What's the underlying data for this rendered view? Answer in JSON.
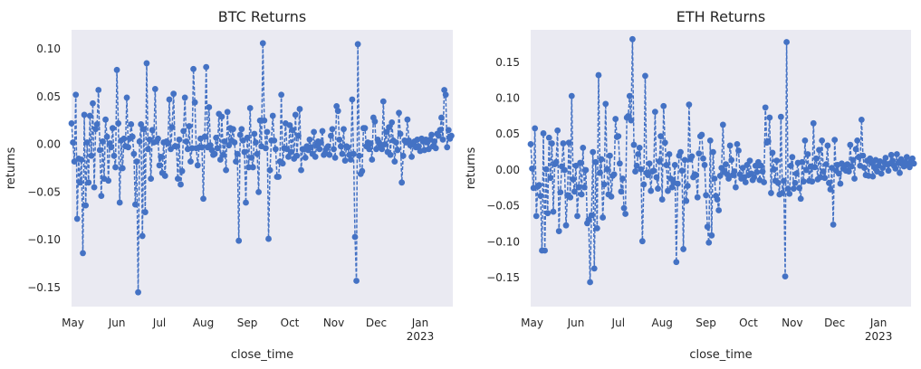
{
  "colors": {
    "background": "#EAEAF2",
    "series": "#4472C4",
    "text": "#262626"
  },
  "chart_data": [
    {
      "type": "line",
      "title": "BTC Returns",
      "xlabel": "close_time",
      "ylabel": "returns",
      "x_ticks": [
        "May",
        "Jun",
        "Jul",
        "Aug",
        "Sep",
        "Oct",
        "Nov",
        "Dec",
        "Jan"
      ],
      "x_year_label": "2023",
      "y_ticks": [
        "0.10",
        "0.05",
        "0.00",
        "−0.05",
        "−0.10",
        "−0.15"
      ],
      "xlim": [
        "2022-04-30",
        "2023-01-24"
      ],
      "ylim": [
        -0.17,
        0.12
      ],
      "grid": false,
      "style": "dashed line with circle markers",
      "series": [
        {
          "start": "2022-04-30",
          "freq": "daily",
          "values": [
            0.022,
            0.002,
            -0.018,
            0.052,
            -0.078,
            -0.015,
            -0.04,
            -0.016,
            -0.114,
            0.031,
            -0.064,
            0.002,
            -0.04,
            0.03,
            -0.012,
            0.043,
            -0.045,
            0.016,
            0.021,
            0.057,
            -0.006,
            -0.054,
            0.003,
            -0.036,
            0.026,
            0.008,
            -0.038,
            0.001,
            -0.003,
            0.017,
            -0.012,
            -0.024,
            0.078,
            0.022,
            -0.061,
            0.004,
            -0.025,
            0.006,
            -0.002,
            0.049,
            -0.003,
            0.006,
            0.021,
            0.008,
            -0.01,
            -0.063,
            -0.018,
            -0.155,
            0.003,
            0.021,
            -0.096,
            0.016,
            -0.071,
            0.085,
            -0.005,
            0.005,
            -0.036,
            0.015,
            0.002,
            0.058,
            0.003,
            0.006,
            -0.022,
            -0.013,
            -0.03,
            0.002,
            -0.033,
            0.003,
            0.001,
            0.047,
            -0.005,
            0.018,
            0.053,
            -0.002,
            -0.002,
            -0.036,
            0.005,
            -0.042,
            -0.028,
            0.014,
            0.049,
            0.003,
            -0.005,
            0.019,
            -0.018,
            -0.004,
            0.079,
            0.044,
            -0.004,
            -0.022,
            -0.003,
            0.006,
            -0.003,
            -0.057,
            0.008,
            0.081,
            -0.003,
            0.039,
            -0.001,
            -0.006,
            -0.011,
            -0.01,
            0.007,
            -0.004,
            0.032,
            -0.016,
            0.029,
            -0.011,
            0.003,
            -0.027,
            0.034,
            -0.001,
            0.017,
            0.004,
            0.016,
            0.002,
            -0.018,
            -0.01,
            -0.101,
            0.01,
            0.016,
            0.004,
            -0.008,
            -0.061,
            0.007,
            -0.024,
            0.038,
            -0.014,
            -0.024,
            0.011,
            0.002,
            -0.01,
            -0.05,
            0.025,
            -0.002,
            0.106,
            0.025,
            -0.004,
            0.013,
            -0.099,
            -0.027,
            0.004,
            0.03,
            0.004,
            -0.005,
            -0.034,
            -0.034,
            -0.018,
            0.052,
            -0.02,
            -0.004,
            0.022,
            -0.005,
            -0.013,
            0.02,
            -0.008,
            0.015,
            -0.015,
            0.031,
            -0.012,
            0.009,
            0.037,
            -0.027,
            -0.005,
            -0.005,
            -0.014,
            -0.002,
            -0.006,
            0.005,
            -0.003,
            -0.01,
            0.013,
            -0.013,
            -0.001,
            0.003,
            -0.005,
            0.002,
            0.014,
            -0.011,
            -0.009,
            -0.004,
            -0.002,
            -0.011,
            0.009,
            0.016,
            -0.005,
            -0.014,
            0.04,
            0.035,
            0.005,
            -0.002,
            -0.01,
            0.016,
            -0.017,
            -0.002,
            -0.003,
            -0.011,
            -0.016,
            0.047,
            -0.01,
            -0.097,
            -0.143,
            0.105,
            -0.012,
            -0.031,
            -0.028,
            0.017,
            0.017,
            -0.002,
            0.002,
            -0.005,
            0.001,
            -0.016,
            0.028,
            0.024,
            -0.005,
            0.005,
            0.002,
            -0.001,
            -0.005,
            0.045,
            0.0,
            0.013,
            -0.008,
            0.018,
            -0.011,
            0.023,
            0.004,
            -0.018,
            0.002,
            -0.006,
            0.033,
            0.011,
            -0.04,
            -0.012,
            0.004,
            0.002,
            0.026,
            0.004,
            -0.001,
            -0.013,
            0.0,
            0.003,
            -0.003,
            0.005,
            -0.002,
            -0.007,
            0.006,
            0.003,
            -0.006,
            0.005,
            0.002,
            -0.005,
            0.005,
            0.01,
            -0.002,
            0.003,
            -0.004,
            0.011,
            0.009,
            0.015,
            0.028,
            0.005,
            0.057,
            0.052,
            -0.003,
            0.015,
            0.006,
            0.009
          ]
        }
      ]
    },
    {
      "type": "line",
      "title": "ETH Returns",
      "xlabel": "close_time",
      "ylabel": "returns",
      "x_ticks": [
        "May",
        "Jun",
        "Jul",
        "Aug",
        "Sep",
        "Oct",
        "Nov",
        "Dec",
        "Jan"
      ],
      "x_year_label": "2023",
      "y_ticks": [
        "0.15",
        "0.10",
        "0.05",
        "0.00",
        "−0.05",
        "−0.10",
        "−0.15"
      ],
      "xlim": [
        "2022-04-30",
        "2023-01-24"
      ],
      "ylim": [
        -0.19,
        0.195
      ],
      "grid": false,
      "style": "dashed line with circle markers",
      "series": [
        {
          "start": "2022-04-30",
          "freq": "daily",
          "values": [
            0.036,
            0.002,
            -0.025,
            0.058,
            -0.064,
            -0.023,
            -0.021,
            -0.036,
            -0.112,
            0.051,
            -0.112,
            0.001,
            -0.06,
            0.045,
            -0.011,
            0.037,
            -0.058,
            0.008,
            0.011,
            0.055,
            -0.085,
            -0.031,
            0.005,
            0.037,
            0.0,
            -0.077,
            -0.035,
            0.038,
            -0.038,
            0.103,
            -0.013,
            -0.03,
            0.006,
            -0.064,
            -0.024,
            0.01,
            -0.034,
            0.031,
            -0.024,
            0.0,
            -0.074,
            -0.069,
            -0.156,
            -0.063,
            0.025,
            -0.137,
            0.011,
            -0.081,
            0.132,
            -0.004,
            0.015,
            -0.066,
            -0.02,
            0.092,
            0.001,
            -0.034,
            0.02,
            -0.037,
            -0.008,
            -0.006,
            0.071,
            0.046,
            0.047,
            0.009,
            -0.03,
            -0.012,
            -0.053,
            -0.061,
            0.073,
            0.075,
            0.103,
            0.069,
            0.182,
            0.035,
            -0.002,
            0.006,
            0.022,
            0.031,
            0.001,
            -0.099,
            -0.02,
            0.131,
            -0.004,
            -0.007,
            0.009,
            -0.029,
            -0.002,
            -0.001,
            0.081,
            -0.01,
            -0.026,
            0.012,
            0.047,
            -0.041,
            0.089,
            0.038,
            0.007,
            -0.029,
            0.022,
            -0.012,
            -0.024,
            -0.017,
            0.007,
            -0.128,
            -0.019,
            0.02,
            0.025,
            -0.001,
            -0.11,
            0.014,
            -0.043,
            -0.022,
            0.091,
            0.015,
            0.019,
            -0.01,
            -0.006,
            -0.007,
            -0.038,
            0.023,
            0.047,
            0.049,
            0.016,
            0.007,
            -0.035,
            -0.079,
            -0.101,
            0.041,
            -0.091,
            0.025,
            -0.012,
            -0.036,
            -0.041,
            -0.056,
            -0.008,
            0.003,
            0.063,
            -0.003,
            0.008,
            -0.006,
            -0.012,
            0.034,
            0.014,
            -0.007,
            -0.002,
            -0.024,
            0.036,
            0.027,
            -0.006,
            -0.012,
            0.003,
            -0.01,
            -0.017,
            0.007,
            -0.007,
            0.013,
            -0.005,
            -0.014,
            -0.01,
            0.006,
            -0.003,
            0.011,
            -0.014,
            0.006,
            -0.002,
            -0.017,
            0.087,
            0.038,
            0.04,
            0.073,
            -0.032,
            0.024,
            0.001,
            -0.015,
            0.013,
            -0.018,
            -0.034,
            0.074,
            -0.032,
            -0.015,
            -0.148,
            0.178,
            -0.026,
            -0.033,
            0.006,
            0.018,
            -0.026,
            -0.018,
            -0.005,
            0.01,
            -0.025,
            -0.04,
            0.011,
            -0.016,
            0.041,
            0.0,
            0.022,
            -0.015,
            0.005,
            -0.016,
            0.065,
            0.004,
            0.016,
            -0.013,
            0.028,
            -0.01,
            0.041,
            -0.002,
            -0.011,
            0.008,
            0.034,
            -0.018,
            -0.027,
            0.003,
            -0.076,
            0.042,
            -0.001,
            0.007,
            -0.005,
            -0.019,
            0.009,
            0.002,
            0.006,
            -0.001,
            0.008,
            -0.002,
            0.035,
            0.005,
            0.014,
            -0.012,
            0.029,
            0.041,
            0.018,
            0.006,
            0.07,
            0.02,
            0.003,
            -0.007,
            0.013,
            -0.008,
            0.016,
            0.01,
            -0.009,
            0.004,
            0.014,
            -0.002,
            0.006,
            0.012,
            -0.005,
            0.003,
            0.011,
            0.017,
            0.008,
            -0.001,
            0.009,
            0.021,
            0.013,
            0.006,
            0.002,
            0.022,
            0.01,
            -0.004,
            0.015,
            0.008,
            0.005,
            0.011,
            0.018,
            0.007,
            0.004,
            0.012,
            0.016,
            0.009
          ]
        }
      ]
    }
  ]
}
